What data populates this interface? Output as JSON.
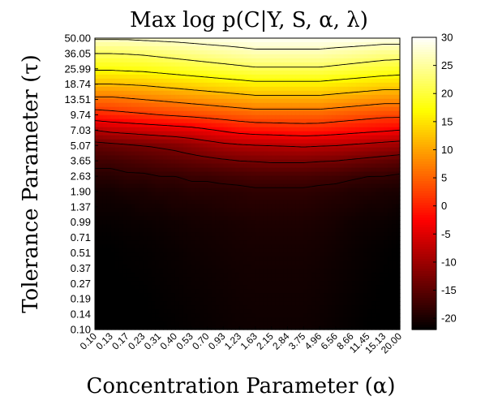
{
  "chart_data": {
    "type": "heatmap",
    "title": "Max log p(C|Y, S, α, λ)",
    "xlabel": "Concentration Parameter (α)",
    "ylabel": "Tolerance Parameter (τ)",
    "x_ticks": [
      "0.10",
      "0.13",
      "0.17",
      "0.23",
      "0.31",
      "0.40",
      "0.53",
      "0.70",
      "0.93",
      "1.23",
      "1.63",
      "2.15",
      "2.84",
      "3.75",
      "4.96",
      "6.56",
      "8.66",
      "11.45",
      "15.13",
      "20.00"
    ],
    "y_ticks": [
      "50.00",
      "36.05",
      "25.99",
      "18.74",
      "13.51",
      "9.74",
      "7.03",
      "5.07",
      "3.65",
      "2.63",
      "1.90",
      "1.37",
      "0.99",
      "0.71",
      "0.51",
      "0.37",
      "0.27",
      "0.19",
      "0.14",
      "0.10"
    ],
    "colorbar": {
      "min": -22,
      "max": 30,
      "ticks": [
        30,
        25,
        20,
        15,
        10,
        5,
        0,
        -5,
        -10,
        -15,
        -20
      ],
      "colormap": "hot"
    },
    "contour_levels": [
      27,
      22,
      17,
      12,
      7,
      2,
      -3,
      -8,
      -13,
      -18
    ],
    "values": [
      [
        27.5,
        27.5,
        27.5,
        27.8,
        28,
        28.2,
        28.5,
        28.8,
        29,
        29.2,
        29.5,
        29.5,
        29.5,
        29.5,
        29.5,
        29.5,
        29.5,
        29.3,
        29,
        29
      ],
      [
        22,
        22,
        22.2,
        22.5,
        23,
        23.5,
        24,
        24.5,
        25,
        25.5,
        26,
        26,
        26,
        26,
        26,
        25.5,
        25,
        24.5,
        24,
        24
      ],
      [
        17.5,
        17.5,
        17.8,
        18,
        18.5,
        19,
        19.5,
        20,
        20.5,
        21,
        21.5,
        21.5,
        21.5,
        21.5,
        21.5,
        21,
        20.5,
        20,
        19.5,
        19
      ],
      [
        12,
        12,
        12.2,
        12.5,
        13,
        13.5,
        14,
        14.5,
        15,
        15.5,
        16,
        16,
        16,
        16,
        16,
        15.5,
        15,
        14.5,
        14,
        14
      ],
      [
        6,
        6,
        6.5,
        7,
        7.5,
        8,
        8.5,
        9,
        9.5,
        10,
        10.5,
        10.5,
        10.5,
        10.5,
        10.5,
        10,
        9.5,
        9,
        8.5,
        8.5
      ],
      [
        0,
        0.5,
        1,
        1.5,
        2,
        2.5,
        3,
        3.5,
        4,
        4.5,
        5,
        5,
        5,
        5,
        5,
        4.5,
        4,
        3.5,
        3,
        3
      ],
      [
        -8,
        -7,
        -6.5,
        -6,
        -5.5,
        -5,
        -4.5,
        -3.5,
        -2.5,
        -1.5,
        -1,
        -0.8,
        -0.5,
        -0.3,
        -0.5,
        -1,
        -1.5,
        -2,
        -2.5,
        -3
      ],
      [
        -14.5,
        -14,
        -13.5,
        -13,
        -12.5,
        -12,
        -11,
        -10,
        -9,
        -8.5,
        -8.2,
        -8,
        -7.8,
        -7.5,
        -7.8,
        -8,
        -8.5,
        -9,
        -9.5,
        -10
      ],
      [
        -17,
        -17,
        -16.5,
        -16,
        -15.5,
        -15,
        -14.5,
        -14,
        -13.5,
        -13,
        -12.8,
        -12.5,
        -12.5,
        -12.5,
        -12.8,
        -13,
        -13.5,
        -14,
        -14.5,
        -15
      ],
      [
        -19,
        -19,
        -18.5,
        -18.5,
        -18,
        -18,
        -17.5,
        -17.5,
        -17,
        -16.8,
        -16.5,
        -16.5,
        -16.5,
        -16.5,
        -16.8,
        -17,
        -17.5,
        -18,
        -18,
        -18.5
      ],
      [
        -20.5,
        -20.5,
        -20,
        -20,
        -19.5,
        -19.5,
        -19,
        -19,
        -19,
        -18.8,
        -18.5,
        -18.5,
        -18.5,
        -18.5,
        -18.8,
        -19,
        -19.5,
        -19.5,
        -20,
        -20
      ],
      [
        -21,
        -21,
        -21,
        -20.5,
        -20.5,
        -20,
        -20,
        -19.8,
        -19.5,
        -19.3,
        -19.2,
        -19.2,
        -19.2,
        -19.2,
        -19.5,
        -19.8,
        -20,
        -20.5,
        -20.5,
        -21
      ],
      [
        -21.5,
        -21.5,
        -21.3,
        -21.2,
        -21,
        -20.8,
        -20.5,
        -20.3,
        -20.2,
        -20,
        -19.8,
        -19.8,
        -19.8,
        -19.8,
        -20,
        -20.3,
        -20.8,
        -21,
        -21.2,
        -21.5
      ],
      [
        -21.8,
        -21.8,
        -21.6,
        -21.5,
        -21.3,
        -21,
        -20.8,
        -20.6,
        -20.4,
        -20.2,
        -20.1,
        -20.1,
        -20.1,
        -20.1,
        -20.3,
        -20.6,
        -21,
        -21.3,
        -21.5,
        -21.8
      ],
      [
        -22,
        -22,
        -21.8,
        -21.7,
        -21.5,
        -21.3,
        -21,
        -20.8,
        -20.6,
        -20.4,
        -20.3,
        -20.3,
        -20.3,
        -20.3,
        -20.5,
        -20.8,
        -21.2,
        -21.5,
        -21.8,
        -22
      ],
      [
        -22,
        -22,
        -21.9,
        -21.8,
        -21.6,
        -21.4,
        -21.2,
        -21,
        -20.8,
        -20.6,
        -20.5,
        -20.5,
        -20.5,
        -20.5,
        -20.7,
        -21,
        -21.3,
        -21.6,
        -21.9,
        -22
      ],
      [
        -22,
        -22,
        -22,
        -21.9,
        -21.7,
        -21.5,
        -21.3,
        -21.1,
        -20.9,
        -20.7,
        -20.6,
        -20.6,
        -20.6,
        -20.6,
        -20.8,
        -21.1,
        -21.4,
        -21.7,
        -22,
        -22
      ],
      [
        -22,
        -22,
        -22,
        -22,
        -21.8,
        -21.6,
        -21.4,
        -21.2,
        -21,
        -20.8,
        -20.7,
        -20.7,
        -20.7,
        -20.7,
        -20.9,
        -21.2,
        -21.5,
        -21.8,
        -22,
        -22
      ],
      [
        -22,
        -22,
        -22,
        -22,
        -21.9,
        -21.7,
        -21.5,
        -21.3,
        -21.1,
        -20.9,
        -20.8,
        -20.8,
        -20.8,
        -20.8,
        -21,
        -21.3,
        -21.6,
        -21.9,
        -22,
        -22
      ],
      [
        -22,
        -22,
        -22,
        -22,
        -22,
        -21.8,
        -21.6,
        -21.4,
        -21.2,
        -21,
        -20.9,
        -20.9,
        -20.9,
        -20.9,
        -21.1,
        -21.4,
        -21.7,
        -22,
        -22,
        -22
      ]
    ]
  }
}
